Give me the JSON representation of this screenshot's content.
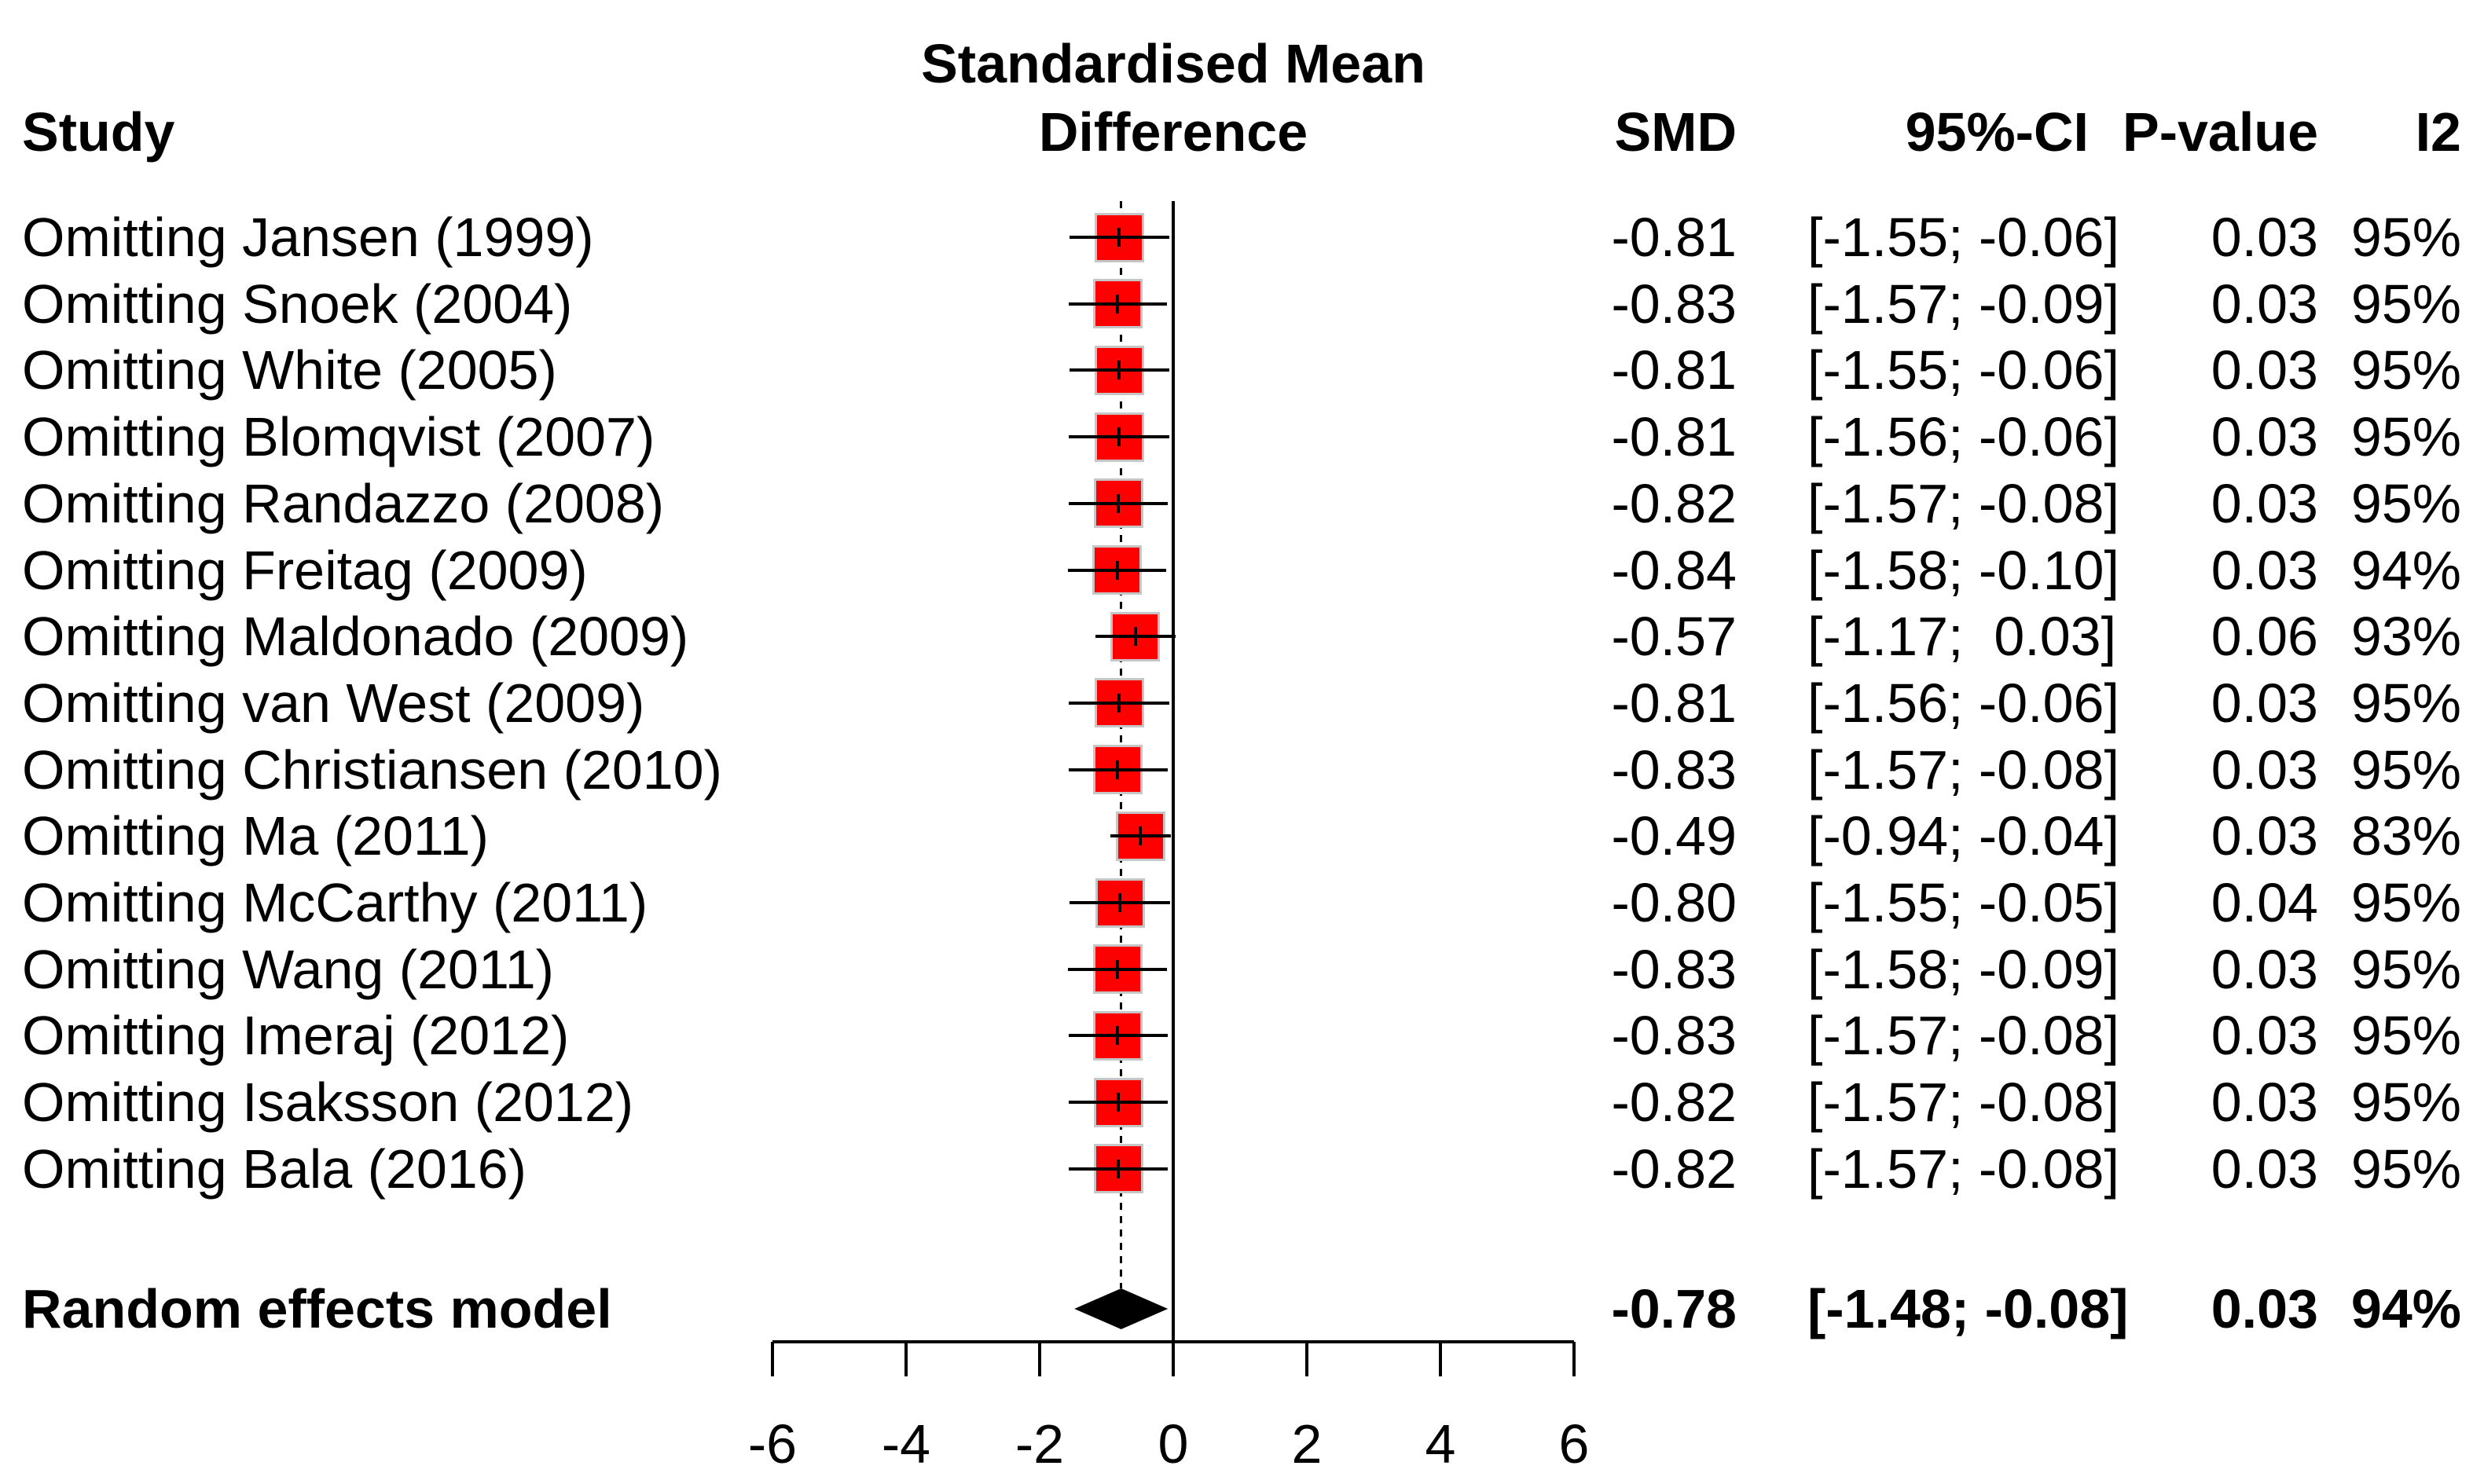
{
  "header": {
    "study_col": "Study",
    "effect_label_line1": "Standardised Mean",
    "effect_label_line2": "Difference",
    "smd_col": "SMD",
    "ci_col": "95%-CI",
    "pvalue_col": "P-value",
    "i2_col": "I2"
  },
  "chart_data": {
    "type": "forest",
    "title": "Standardised Mean Difference",
    "xlabel": "",
    "axis": {
      "ticks": [
        -6,
        -4,
        -2,
        0,
        2,
        4,
        6
      ],
      "min": -6,
      "max": 6,
      "reference_line_x": 0,
      "overall_dashed_line_x": -0.78
    },
    "legend_position": "none",
    "grid": false,
    "columns": [
      "Study",
      "SMD",
      "95%-CI",
      "P-value",
      "I2"
    ],
    "studies": [
      {
        "label": "Omitting Jansen (1999)",
        "smd": -0.81,
        "ci_lo": -1.55,
        "ci_hi": -0.06,
        "smd_text": "-0.81",
        "ci_text": "[-1.55; -0.06]",
        "p": "0.03",
        "i2": "95%"
      },
      {
        "label": "Omitting Snoek (2004)",
        "smd": -0.83,
        "ci_lo": -1.57,
        "ci_hi": -0.09,
        "smd_text": "-0.83",
        "ci_text": "[-1.57; -0.09]",
        "p": "0.03",
        "i2": "95%"
      },
      {
        "label": "Omitting White (2005)",
        "smd": -0.81,
        "ci_lo": -1.55,
        "ci_hi": -0.06,
        "smd_text": "-0.81",
        "ci_text": "[-1.55; -0.06]",
        "p": "0.03",
        "i2": "95%"
      },
      {
        "label": "Omitting Blomqvist (2007)",
        "smd": -0.81,
        "ci_lo": -1.56,
        "ci_hi": -0.06,
        "smd_text": "-0.81",
        "ci_text": "[-1.56; -0.06]",
        "p": "0.03",
        "i2": "95%"
      },
      {
        "label": "Omitting Randazzo (2008)",
        "smd": -0.82,
        "ci_lo": -1.57,
        "ci_hi": -0.08,
        "smd_text": "-0.82",
        "ci_text": "[-1.57; -0.08]",
        "p": "0.03",
        "i2": "95%"
      },
      {
        "label": "Omitting Freitag (2009)",
        "smd": -0.84,
        "ci_lo": -1.58,
        "ci_hi": -0.1,
        "smd_text": "-0.84",
        "ci_text": "[-1.58; -0.10]",
        "p": "0.03",
        "i2": "94%"
      },
      {
        "label": "Omitting Maldonado (2009)",
        "smd": -0.57,
        "ci_lo": -1.17,
        "ci_hi": 0.03,
        "smd_text": "-0.57",
        "ci_text": "[-1.17;  0.03]",
        "p": "0.06",
        "i2": "93%"
      },
      {
        "label": "Omitting van West (2009)",
        "smd": -0.81,
        "ci_lo": -1.56,
        "ci_hi": -0.06,
        "smd_text": "-0.81",
        "ci_text": "[-1.56; -0.06]",
        "p": "0.03",
        "i2": "95%"
      },
      {
        "label": "Omitting Christiansen (2010)",
        "smd": -0.83,
        "ci_lo": -1.57,
        "ci_hi": -0.08,
        "smd_text": "-0.83",
        "ci_text": "[-1.57; -0.08]",
        "p": "0.03",
        "i2": "95%"
      },
      {
        "label": "Omitting Ma (2011)",
        "smd": -0.49,
        "ci_lo": -0.94,
        "ci_hi": -0.04,
        "smd_text": "-0.49",
        "ci_text": "[-0.94; -0.04]",
        "p": "0.03",
        "i2": "83%"
      },
      {
        "label": "Omitting McCarthy (2011)",
        "smd": -0.8,
        "ci_lo": -1.55,
        "ci_hi": -0.05,
        "smd_text": "-0.80",
        "ci_text": "[-1.55; -0.05]",
        "p": "0.04",
        "i2": "95%"
      },
      {
        "label": "Omitting Wang (2011)",
        "smd": -0.83,
        "ci_lo": -1.58,
        "ci_hi": -0.09,
        "smd_text": "-0.83",
        "ci_text": "[-1.58; -0.09]",
        "p": "0.03",
        "i2": "95%"
      },
      {
        "label": "Omitting Imeraj (2012)",
        "smd": -0.83,
        "ci_lo": -1.57,
        "ci_hi": -0.08,
        "smd_text": "-0.83",
        "ci_text": "[-1.57; -0.08]",
        "p": "0.03",
        "i2": "95%"
      },
      {
        "label": "Omitting Isaksson (2012)",
        "smd": -0.82,
        "ci_lo": -1.57,
        "ci_hi": -0.08,
        "smd_text": "-0.82",
        "ci_text": "[-1.57; -0.08]",
        "p": "0.03",
        "i2": "95%"
      },
      {
        "label": "Omitting Bala (2016)",
        "smd": -0.82,
        "ci_lo": -1.57,
        "ci_hi": -0.08,
        "smd_text": "-0.82",
        "ci_text": "[-1.57; -0.08]",
        "p": "0.03",
        "i2": "95%"
      }
    ],
    "summary": {
      "label": "Random effects model",
      "smd": -0.78,
      "ci_lo": -1.48,
      "ci_hi": -0.08,
      "smd_text": "-0.78",
      "ci_text": "[-1.48; -0.08]",
      "p": "0.03",
      "i2": "94%"
    }
  },
  "colors": {
    "square_fill": "#ff0000",
    "square_border": "#c6c6c6",
    "line": "#000000",
    "diamond": "#000000",
    "background": "#ffffff"
  }
}
